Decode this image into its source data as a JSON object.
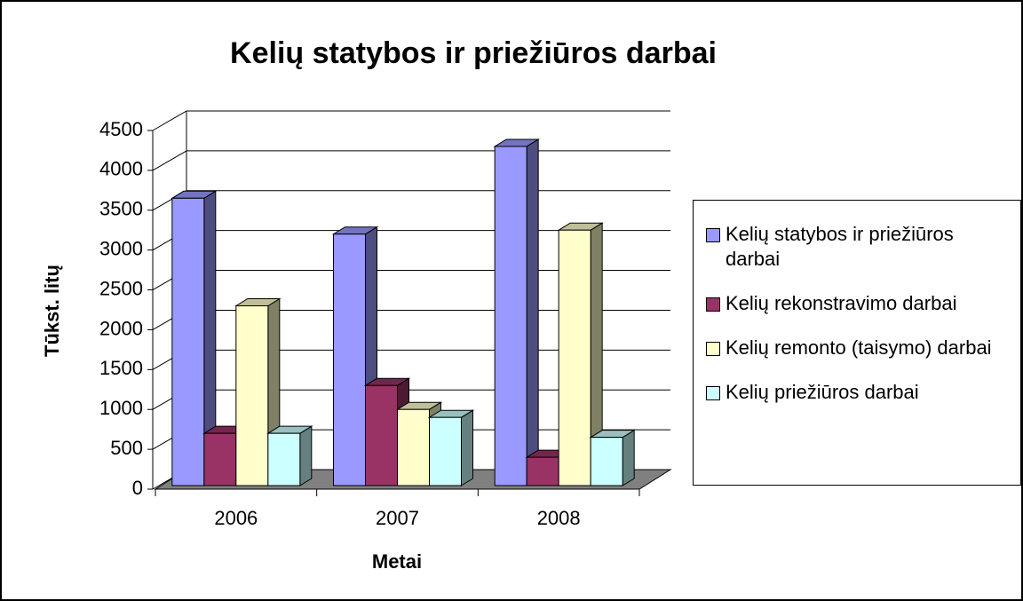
{
  "chart_data": {
    "type": "bar3d",
    "title": "Kelių statybos ir priežiūros darbai",
    "x_label": "Metai",
    "y_label": "Tūkst. litų",
    "categories": [
      "2006",
      "2007",
      "2008"
    ],
    "series": [
      {
        "name": "Kelių statybos ir priežiūros darbai",
        "color": "#9999ff",
        "values": [
          3650,
          3200,
          4300
        ]
      },
      {
        "name": "Kelių rekonstravimo darbai",
        "color": "#993366",
        "values": [
          700,
          1300,
          400
        ]
      },
      {
        "name": "Kelių remonto (taisymo) darbai",
        "color": "#ffffcc",
        "values": [
          2300,
          1000,
          3250
        ]
      },
      {
        "name": "Kelių priežiūros darbai",
        "color": "#ccffff",
        "values": [
          700,
          900,
          650
        ]
      }
    ],
    "ylim": [
      0,
      4500
    ],
    "yticks": [
      0,
      500,
      1000,
      1500,
      2000,
      2500,
      3000,
      3500,
      4000,
      4500
    ],
    "grid": true,
    "legend": "right"
  }
}
